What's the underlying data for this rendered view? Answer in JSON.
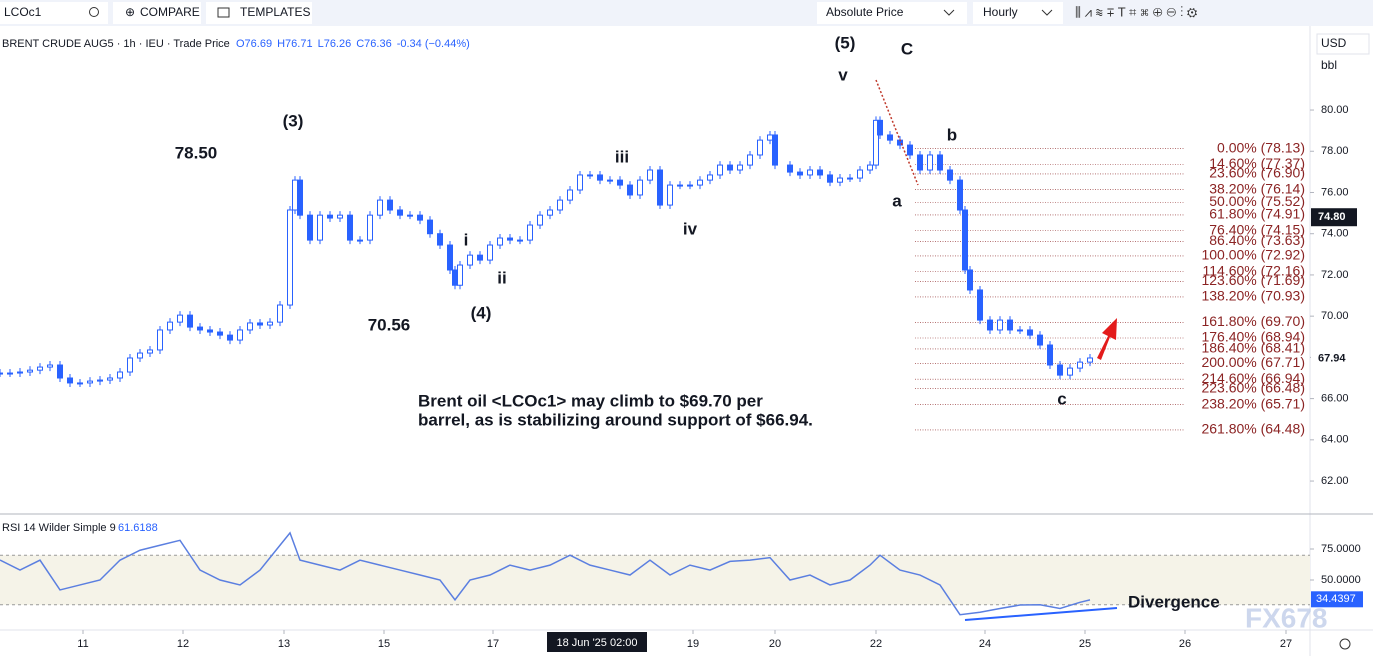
{
  "toolbar": {
    "symbol": "LCOc1",
    "compare": "COMPARE",
    "templates": "TEMPLATES",
    "price_mode": "Absolute Price",
    "interval": "Hourly",
    "currency": "USD",
    "unit": "bbl"
  },
  "watermark": "FX678",
  "chart_data": [
    {
      "type": "candlestick",
      "title": "BRENT CRUDE AUG5 · 1h · IEU · Trade Price",
      "ohlc": [
        "O76.69",
        "H76.71",
        "L76.26",
        "C76.36",
        "-0.34 (−0.44%)"
      ],
      "color": "#2962ff",
      "x": [
        0,
        1,
        2,
        3,
        4,
        5,
        6,
        7,
        8,
        9,
        10,
        11,
        12,
        13,
        14,
        15,
        16,
        17,
        18,
        19,
        20,
        21,
        22,
        23,
        24,
        25,
        26,
        27,
        28,
        29,
        29.5,
        30,
        31,
        32,
        33,
        34,
        35,
        36,
        37,
        38,
        39,
        40,
        41,
        42,
        43,
        44,
        45,
        45.5,
        46,
        47,
        48,
        49,
        50,
        51,
        52,
        53,
        54,
        55,
        56,
        57,
        58,
        59,
        60,
        61,
        62,
        63,
        64,
        65,
        66,
        67,
        68,
        69,
        70,
        71,
        72,
        73,
        74,
        75,
        76,
        77,
        77.5,
        79,
        80,
        81,
        82,
        83,
        84,
        85,
        86,
        87,
        87.6,
        88,
        89,
        90,
        91,
        92,
        93,
        94,
        95,
        96,
        96.5,
        97,
        98,
        99,
        100,
        101,
        102,
        103,
        104,
        105,
        106,
        107,
        108,
        109
      ],
      "values": [
        67.24,
        67.24,
        67.29,
        67.38,
        67.53,
        67.63,
        67.0,
        66.76,
        66.76,
        66.85,
        66.9,
        67.0,
        67.29,
        67.97,
        68.21,
        68.36,
        69.33,
        69.71,
        70.05,
        69.47,
        69.33,
        69.23,
        69.08,
        68.84,
        69.33,
        69.67,
        69.57,
        69.71,
        70.54,
        75.15,
        76.6,
        74.9,
        73.69,
        74.9,
        74.76,
        74.9,
        73.69,
        73.69,
        74.9,
        75.63,
        75.15,
        74.9,
        74.9,
        74.66,
        74.0,
        73.45,
        72.24,
        71.5,
        72.48,
        72.96,
        72.72,
        73.45,
        73.79,
        73.69,
        73.69,
        74.42,
        74.9,
        75.15,
        75.63,
        76.12,
        76.85,
        76.85,
        76.6,
        76.6,
        76.36,
        75.88,
        76.6,
        77.09,
        75.39,
        76.36,
        76.36,
        76.36,
        76.6,
        76.85,
        77.33,
        77.09,
        77.33,
        77.82,
        78.54,
        78.79,
        77.33,
        76.99,
        76.85,
        77.09,
        76.85,
        76.5,
        76.7,
        76.7,
        77.09,
        77.33,
        79.5,
        78.79,
        78.54,
        78.3,
        77.82,
        77.09,
        77.82,
        77.09,
        76.6,
        75.15,
        72.24,
        71.27,
        69.81,
        69.33,
        69.81,
        69.33,
        69.33,
        69.08,
        68.6,
        67.63,
        67.14,
        67.48,
        67.77,
        67.97
      ],
      "xlim": [
        0,
        131
      ],
      "ylim": [
        60.45,
        83.98
      ],
      "yticks": [
        {
          "value": 62,
          "label": "62.00"
        },
        {
          "value": 64,
          "label": "64.00"
        },
        {
          "value": 66,
          "label": "66.00"
        },
        {
          "value": 68,
          "label": "68.00"
        },
        {
          "value": 70,
          "label": "70.00"
        },
        {
          "value": 72,
          "label": "72.00"
        },
        {
          "value": 74,
          "label": "74.00"
        },
        {
          "value": 76,
          "label": "76.00"
        },
        {
          "value": 78,
          "label": "78.00"
        },
        {
          "value": 80,
          "label": "80.00"
        }
      ],
      "xticks": [
        {
          "value": 8.3,
          "label": "11"
        },
        {
          "value": 18.3,
          "label": "12"
        },
        {
          "value": 28.4,
          "label": "13"
        },
        {
          "value": 38.4,
          "label": "15"
        },
        {
          "value": 49.3,
          "label": "17"
        },
        {
          "value": 69.3,
          "label": "19"
        },
        {
          "value": 77.5,
          "label": "20"
        },
        {
          "value": 87.6,
          "label": "22"
        },
        {
          "value": 98.5,
          "label": "24"
        },
        {
          "value": 108.5,
          "label": "25"
        },
        {
          "value": 118.5,
          "label": "26"
        },
        {
          "value": 128.6,
          "label": "27"
        }
      ],
      "crosshair": {
        "value": 59.7,
        "label": "18 Jun '25  02:00"
      },
      "price_tags": [
        {
          "value": 74.8,
          "label": "74.80",
          "color": "#131722"
        },
        {
          "value": 67.94,
          "label": "67.94",
          "color": "#ffffff"
        }
      ],
      "fib_color": "#8b2323",
      "fib_levels": [
        {
          "value": 78.13,
          "label": "0.00% (78.13)"
        },
        {
          "value": 77.37,
          "label": "14.60% (77.37)"
        },
        {
          "value": 76.9,
          "label": "23.60% (76.90)"
        },
        {
          "value": 76.14,
          "label": "38.20% (76.14)"
        },
        {
          "value": 75.52,
          "label": "50.00% (75.52)"
        },
        {
          "value": 74.91,
          "label": "61.80% (74.91)"
        },
        {
          "value": 74.15,
          "label": "76.40% (74.15)"
        },
        {
          "value": 73.63,
          "label": "86.40% (73.63)"
        },
        {
          "value": 72.92,
          "label": "100.00% (72.92)"
        },
        {
          "value": 72.16,
          "label": "114.60% (72.16)"
        },
        {
          "value": 71.69,
          "label": "123.60% (71.69)"
        },
        {
          "value": 70.93,
          "label": "138.20% (70.93)"
        },
        {
          "value": 69.7,
          "label": "161.80% (69.70)"
        },
        {
          "value": 68.94,
          "label": "176.40% (68.94)"
        },
        {
          "value": 68.41,
          "label": "186.40% (68.41)"
        },
        {
          "value": 67.71,
          "label": "200.00% (67.71)"
        },
        {
          "value": 66.94,
          "label": "214.60% (66.94)"
        },
        {
          "value": 66.48,
          "label": "223.60% (66.48)"
        },
        {
          "value": 65.71,
          "label": "238.20% (65.71)"
        },
        {
          "value": 64.48,
          "label": "261.80% (64.48)"
        }
      ],
      "annotations": [
        "(3)",
        "78.50",
        "70.56",
        "(4)",
        "i",
        "ii",
        "iii",
        "iv",
        "v",
        "(5)",
        "C",
        "b",
        "a",
        "c",
        "Brent oil <LCOc1> may climb to $69.70 per",
        "barrel, as is stabilizing around support of $66.94.",
        "Divergence"
      ]
    },
    {
      "type": "line",
      "title": "RSI 14 Wilder Simple 9",
      "last": "61.6188",
      "color": "#5b7fe0",
      "x": [
        0,
        2,
        4,
        6,
        8,
        10,
        12,
        14,
        16,
        18,
        20,
        22,
        24,
        26,
        28,
        29,
        30,
        32,
        34,
        36,
        38,
        40,
        42,
        44,
        45.5,
        47,
        49,
        51,
        53,
        55,
        57,
        59,
        61,
        63,
        65,
        67,
        69,
        71,
        73,
        75,
        77,
        79,
        81,
        83,
        85,
        87,
        88,
        90,
        92,
        94,
        96,
        98,
        100,
        102,
        104,
        106,
        108,
        109
      ],
      "values": [
        66.1,
        58,
        66,
        42,
        46,
        50,
        66,
        74,
        78,
        82,
        58,
        50,
        46,
        58,
        78,
        88,
        66,
        62,
        58,
        66,
        62,
        58,
        54,
        50,
        34,
        50,
        54,
        62,
        58,
        62,
        70,
        62,
        58,
        54,
        66,
        54,
        62,
        58,
        65,
        66,
        68,
        50,
        54,
        46,
        50,
        62,
        70,
        58,
        54,
        46,
        22,
        24,
        27,
        29.8,
        30,
        27,
        32,
        34
      ],
      "xlim": [
        0,
        131
      ],
      "ylim": [
        11.3,
        102.4
      ],
      "band": [
        30,
        70
      ],
      "yticks": [
        {
          "value": 50,
          "label": "50.0000"
        },
        {
          "value": 75,
          "label": "75.0000"
        }
      ],
      "tag": {
        "value": 34.4397,
        "label": "34.4397"
      }
    }
  ]
}
